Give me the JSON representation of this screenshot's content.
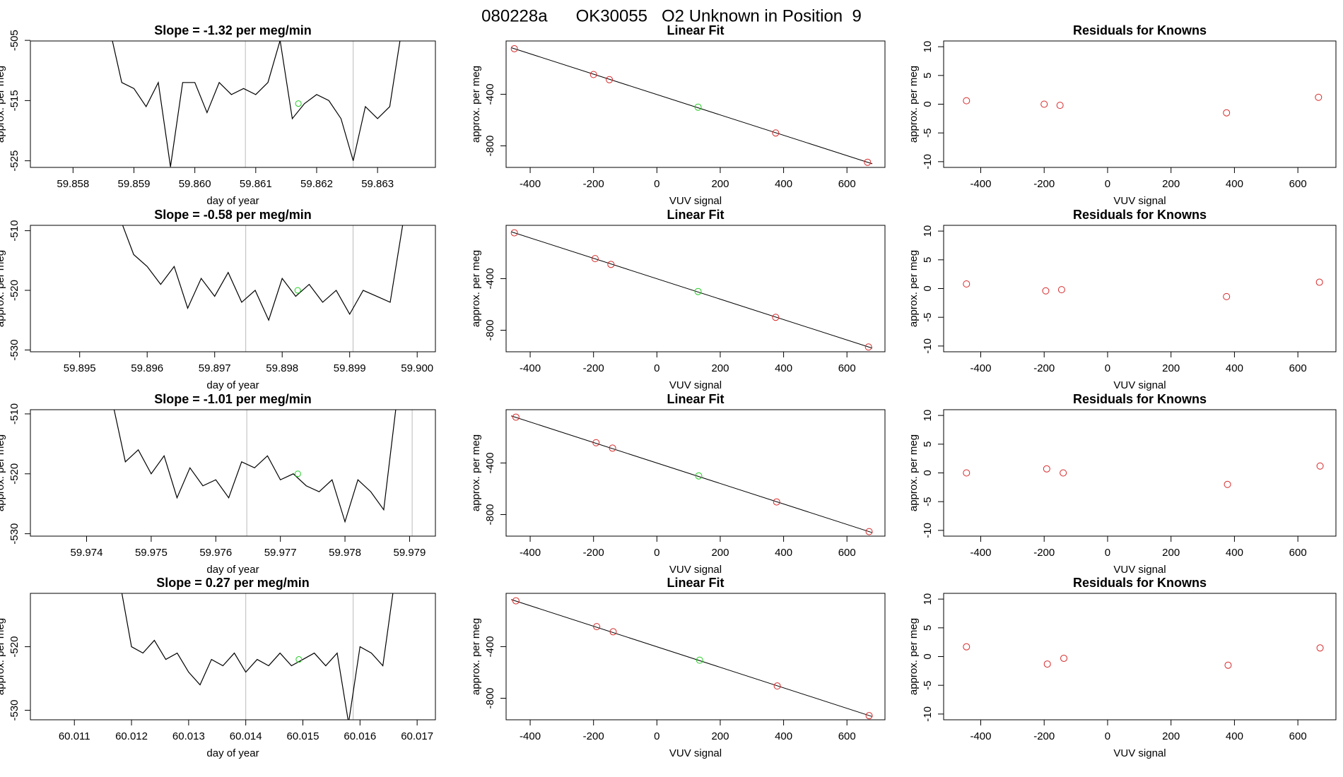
{
  "title": "080228a      OK30055   O2 Unknown in Position  9",
  "chart_data": [
    {
      "type": "line",
      "title": "Slope =  -1.32  per meg/min",
      "xlabel": "day of year",
      "ylabel": "approx. per meg",
      "xlim": [
        59.8573,
        59.86395
      ],
      "ylim": [
        -526.1,
        -505.1
      ],
      "xticks": [
        59.858,
        59.859,
        59.86,
        59.861,
        59.862,
        59.863
      ],
      "xtick_labels": [
        "59.858",
        "59.859",
        "59.860",
        "59.861",
        "59.862",
        "59.863"
      ],
      "yticks": [
        -505,
        -515,
        -525
      ],
      "vlines": [
        59.86083,
        59.8626
      ],
      "vline_color": "#bbbbbb",
      "color": "#000000",
      "x": [
        59.8586,
        59.8588,
        59.859,
        59.8592,
        59.8594,
        59.8596,
        59.8598,
        59.86,
        59.8602,
        59.8604,
        59.8606,
        59.8608,
        59.861,
        59.8612,
        59.8614,
        59.8616,
        59.8618,
        59.862,
        59.8622,
        59.8624,
        59.8626,
        59.8628,
        59.863,
        59.8632,
        59.8634
      ],
      "values": [
        -503,
        -512,
        -513,
        -516,
        -512,
        -526,
        -512,
        -512,
        -517,
        -512,
        -514,
        -513,
        -514,
        -512,
        -505,
        -518,
        -515.5,
        -514,
        -515,
        -518,
        -525,
        -516,
        -518,
        -516,
        -503
      ],
      "points": {
        "color": "#22cc22",
        "x": [
          59.8617
        ],
        "values": [
          -515.5
        ]
      }
    },
    {
      "type": "scatter",
      "title": "Linear Fit",
      "xlabel": "VUV signal",
      "ylabel": "approx. per meg",
      "xlim": [
        -476,
        720
      ],
      "ylim": [
        -967,
        13
      ],
      "xticks": [
        -400,
        -200,
        0,
        200,
        400,
        600
      ],
      "yticks": [
        -400,
        -800
      ],
      "series": [
        {
          "color": "#d62728",
          "x": [
            -450,
            -200,
            -150,
            375,
            665
          ],
          "values": [
            -47,
            -247,
            -287,
            -700,
            -927
          ]
        },
        {
          "color": "#22cc22",
          "x": [
            130
          ],
          "values": [
            -500
          ]
        }
      ],
      "fit": {
        "color": "#000000",
        "x": [
          -460,
          680
        ],
        "values": [
          -39,
          -939
        ]
      }
    },
    {
      "type": "scatter",
      "title": "Residuals for Knowns",
      "xlabel": "VUV signal",
      "ylabel": "approx. per meg",
      "xlim": [
        -517,
        720
      ],
      "ylim": [
        -11,
        11
      ],
      "xticks": [
        -400,
        -200,
        0,
        200,
        400,
        600
      ],
      "yticks": [
        -10,
        -5,
        0,
        5,
        10
      ],
      "series": [
        {
          "color": "#d62728",
          "x": [
            -445,
            -200,
            -150,
            375,
            665
          ],
          "values": [
            0.6,
            0,
            -0.2,
            -1.5,
            1.2
          ]
        }
      ]
    },
    {
      "type": "line",
      "title": "Slope =  -0.58  per meg/min",
      "xlabel": "day of year",
      "ylabel": "approx. per meg",
      "xlim": [
        59.89427,
        59.90027
      ],
      "ylim": [
        -530.3,
        -509.1
      ],
      "xticks": [
        59.895,
        59.896,
        59.897,
        59.898,
        59.899,
        59.9
      ],
      "xtick_labels": [
        "59.895",
        "59.896",
        "59.897",
        "59.898",
        "59.899",
        "59.900"
      ],
      "yticks": [
        -510,
        -520,
        -530
      ],
      "vlines": [
        59.89746,
        59.89905
      ],
      "vline_color": "#bbbbbb",
      "color": "#000000",
      "x": [
        59.8956,
        59.8958,
        59.896,
        59.8962,
        59.8964,
        59.8966,
        59.8968,
        59.897,
        59.8972,
        59.8974,
        59.8976,
        59.8978,
        59.898,
        59.8982,
        59.8984,
        59.8986,
        59.8988,
        59.899,
        59.8992,
        59.8994,
        59.8996,
        59.8998
      ],
      "values": [
        -508,
        -514,
        -516,
        -519,
        -516,
        -523,
        -518,
        -521,
        -517,
        -522,
        -520,
        -525,
        -518,
        -521,
        -519,
        -522,
        -520,
        -524,
        -520,
        -521,
        -522,
        -508
      ],
      "points": {
        "color": "#22cc22",
        "x": [
          59.89823
        ],
        "values": [
          -520
        ]
      }
    },
    {
      "type": "scatter",
      "title": "Linear Fit",
      "xlabel": "VUV signal",
      "ylabel": "approx. per meg",
      "xlim": [
        -476,
        720
      ],
      "ylim": [
        -967,
        13
      ],
      "xticks": [
        -400,
        -200,
        0,
        200,
        400,
        600
      ],
      "yticks": [
        -400,
        -800
      ],
      "series": [
        {
          "color": "#d62728",
          "x": [
            -450,
            -195,
            -145,
            375,
            668
          ],
          "values": [
            -45,
            -245,
            -290,
            -700,
            -930
          ]
        },
        {
          "color": "#22cc22",
          "x": [
            130
          ],
          "values": [
            -500
          ]
        }
      ],
      "fit": {
        "color": "#000000",
        "x": [
          -460,
          680
        ],
        "values": [
          -37,
          -939
        ]
      }
    },
    {
      "type": "scatter",
      "title": "Residuals for Knowns",
      "xlabel": "VUV signal",
      "ylabel": "approx. per meg",
      "xlim": [
        -517,
        720
      ],
      "ylim": [
        -11,
        11
      ],
      "xticks": [
        -400,
        -200,
        0,
        200,
        400,
        600
      ],
      "yticks": [
        -10,
        -5,
        0,
        5,
        10
      ],
      "series": [
        {
          "color": "#d62728",
          "x": [
            -445,
            -195,
            -145,
            375,
            668
          ],
          "values": [
            0.8,
            -0.4,
            -0.2,
            -1.4,
            1.1
          ]
        }
      ]
    },
    {
      "type": "line",
      "title": "Slope =  -1.01  per meg/min",
      "xlabel": "day of year",
      "ylabel": "approx. per meg",
      "xlim": [
        59.97313,
        59.9794
      ],
      "ylim": [
        -530.4,
        -509.3
      ],
      "xticks": [
        59.974,
        59.975,
        59.976,
        59.977,
        59.978,
        59.979
      ],
      "yticks": [
        -510,
        -520,
        -530
      ],
      "vlines": [
        59.97648,
        59.97904
      ],
      "vline_color": "#bbbbbb",
      "color": "#000000",
      "x": [
        59.9744,
        59.9746,
        59.9748,
        59.975,
        59.9752,
        59.9754,
        59.9756,
        59.9758,
        59.976,
        59.9762,
        59.9764,
        59.9766,
        59.9768,
        59.977,
        59.9772,
        59.9774,
        59.9776,
        59.9778,
        59.978,
        59.9782,
        59.9784,
        59.9786,
        59.9788
      ],
      "values": [
        -508,
        -518,
        -516,
        -520,
        -517,
        -524,
        -519,
        -522,
        -521,
        -524,
        -518,
        -519,
        -517,
        -521,
        -520,
        -522,
        -523,
        -521,
        -528,
        -521,
        -523,
        -526,
        -508
      ],
      "points": {
        "color": "#22cc22",
        "x": [
          59.97727
        ],
        "values": [
          -520
        ]
      }
    },
    {
      "type": "scatter",
      "title": "Linear Fit",
      "xlabel": "VUV signal",
      "ylabel": "approx. per meg",
      "xlim": [
        -476,
        720
      ],
      "ylim": [
        -967,
        13
      ],
      "xticks": [
        -400,
        -200,
        0,
        200,
        400,
        600
      ],
      "yticks": [
        -400,
        -800
      ],
      "series": [
        {
          "color": "#d62728",
          "x": [
            -445,
            -192,
            -140,
            378,
            670
          ],
          "values": [
            -45,
            -243,
            -285,
            -702,
            -932
          ]
        },
        {
          "color": "#22cc22",
          "x": [
            132
          ],
          "values": [
            -500
          ]
        }
      ],
      "fit": {
        "color": "#000000",
        "x": [
          -460,
          680
        ],
        "values": [
          -35,
          -940
        ]
      }
    },
    {
      "type": "scatter",
      "title": "Residuals for Knowns",
      "xlabel": "VUV signal",
      "ylabel": "approx. per meg",
      "xlim": [
        -517,
        720
      ],
      "ylim": [
        -11,
        11
      ],
      "xticks": [
        -400,
        -200,
        0,
        200,
        400,
        600
      ],
      "yticks": [
        -10,
        -5,
        0,
        5,
        10
      ],
      "series": [
        {
          "color": "#d62728",
          "x": [
            -445,
            -192,
            -140,
            378,
            670
          ],
          "values": [
            0,
            0.7,
            0,
            -2,
            1.2
          ]
        }
      ]
    },
    {
      "type": "line",
      "title": "Slope =  0.27  per meg/min",
      "xlabel": "day of year",
      "ylabel": "approx. per meg",
      "xlim": [
        60.01023,
        60.01732
      ],
      "ylim": [
        -531.5,
        -511.6
      ],
      "xticks": [
        60.011,
        60.012,
        60.013,
        60.014,
        60.015,
        60.016,
        60.017
      ],
      "yticks": [
        -520,
        -530
      ],
      "vlines": [
        60.014,
        60.01588
      ],
      "vline_color": "#bbbbbb",
      "color": "#000000",
      "x": [
        60.0118,
        60.012,
        60.0122,
        60.0124,
        60.0126,
        60.0128,
        60.013,
        60.0132,
        60.0134,
        60.0136,
        60.0138,
        60.014,
        60.0142,
        60.0144,
        60.0146,
        60.0148,
        60.015,
        60.0152,
        60.0154,
        60.0156,
        60.0158,
        60.016,
        60.0162,
        60.0164,
        60.0166
      ],
      "values": [
        -510,
        -520,
        -521,
        -519,
        -522,
        -521,
        -524,
        -526,
        -522,
        -523,
        -521,
        -524,
        -522,
        -523,
        -521,
        -523,
        -522,
        -521,
        -523,
        -521,
        -532,
        -520,
        -521,
        -523,
        -510
      ],
      "points": {
        "color": "#22cc22",
        "x": [
          60.01493
        ],
        "values": [
          -522
        ]
      }
    },
    {
      "type": "scatter",
      "title": "Linear Fit",
      "xlabel": "VUV signal",
      "ylabel": "approx. per meg",
      "xlim": [
        -476,
        720
      ],
      "ylim": [
        -967,
        13
      ],
      "xticks": [
        -400,
        -200,
        0,
        200,
        400,
        600
      ],
      "yticks": [
        -400,
        -800
      ],
      "series": [
        {
          "color": "#d62728",
          "x": [
            -445,
            -190,
            -138,
            380,
            670
          ],
          "values": [
            -45,
            -245,
            -285,
            -705,
            -935
          ]
        },
        {
          "color": "#22cc22",
          "x": [
            135
          ],
          "values": [
            -505
          ]
        }
      ],
      "fit": {
        "color": "#000000",
        "x": [
          -460,
          680
        ],
        "values": [
          -35,
          -942
        ]
      }
    },
    {
      "type": "scatter",
      "title": "Residuals for Knowns",
      "xlabel": "VUV signal",
      "ylabel": "approx. per meg",
      "xlim": [
        -517,
        720
      ],
      "ylim": [
        -11,
        11
      ],
      "xticks": [
        -400,
        -200,
        0,
        200,
        400,
        600
      ],
      "yticks": [
        -10,
        -5,
        0,
        5,
        10
      ],
      "series": [
        {
          "color": "#d62728",
          "x": [
            -445,
            -190,
            -138,
            380,
            670
          ],
          "values": [
            1.7,
            -1.3,
            -0.3,
            -1.5,
            1.5
          ]
        }
      ]
    }
  ]
}
